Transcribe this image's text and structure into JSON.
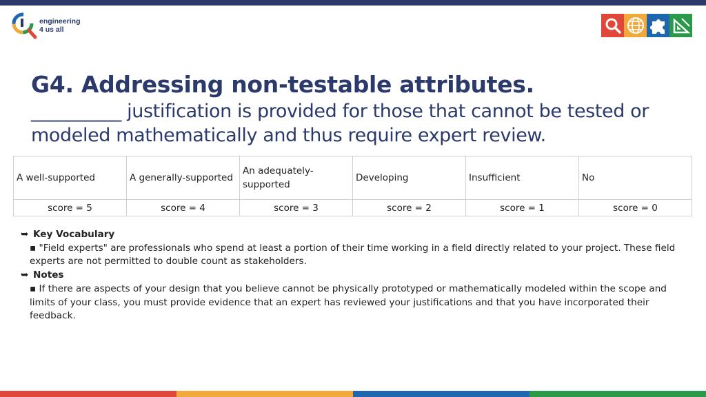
{
  "brand": {
    "line1": "engineering",
    "line2": "4 us all"
  },
  "icons": [
    {
      "name": "magnifier-icon",
      "color": "#e0463a"
    },
    {
      "name": "globe-icon",
      "color": "#f2a93b"
    },
    {
      "name": "puzzle-icon",
      "color": "#1f66b0"
    },
    {
      "name": "ruler-triangle-icon",
      "color": "#2a9a4a"
    }
  ],
  "slide": {
    "title": "G4. Addressing non-testable attributes.",
    "subtitle": "__________ justification is provided for those that cannot be tested or modeled mathematically and thus require expert review."
  },
  "rubric": {
    "levels": [
      "A well-supported",
      "A generally-supported",
      "An adequately-supported",
      "Developing",
      "Insufficient",
      "No"
    ],
    "scores": [
      "score = 5",
      "score = 4",
      "score = 3",
      "score = 2",
      "score = 1",
      "score = 0"
    ]
  },
  "notes": {
    "vocab_heading": "Key Vocabulary",
    "vocab_item": "\"Field experts\" are professionals who spend at least a portion of their time working in a field directly related to your project. These field experts are not permitted to double count as stakeholders.",
    "notes_heading": "Notes",
    "notes_item": "If there are aspects of your design that you believe cannot be physically prototyped or mathematically modeled within the scope and limits of your class, you must provide evidence that an expert has reviewed your justifications and that you have incorporated their feedback."
  },
  "colors": {
    "navy": "#2b3a6b",
    "stripes": [
      "#e0463a",
      "#f2a93b",
      "#1f66b0",
      "#2a9a4a"
    ]
  }
}
